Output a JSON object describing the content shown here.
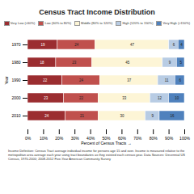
{
  "chart_data": {
    "type": "bar",
    "title": "Census Tract Income Distribution",
    "orientation": "horizontal",
    "stacked": true,
    "data_labels": true,
    "grid": false,
    "legend": "top",
    "xlabel": "Percent of Census Tracts",
    "ylabel": "Year",
    "categories": [
      "1970",
      "1980",
      "1990",
      "2000",
      "2010"
    ],
    "series": [
      {
        "name": "Very Low (<60%)",
        "color": "#9b2d30",
        "values": [
          19,
          18,
          22,
          23,
          24
        ]
      },
      {
        "name": "Low (60% to 80%)",
        "color": "#c0504d",
        "values": [
          24,
          23,
          24,
          22,
          21
        ]
      },
      {
        "name": "Middle (80% to 120%)",
        "color": "#fdf5d6",
        "values": [
          47,
          45,
          37,
          33,
          30
        ]
      },
      {
        "name": "High (120% to 150%)",
        "color": "#b8cce4",
        "values": [
          6,
          9,
          11,
          12,
          9
        ]
      },
      {
        "name": "Very High (>150%)",
        "color": "#4f81bd",
        "values": [
          4,
          5,
          6,
          10,
          16
        ]
      }
    ],
    "xlim": [
      0,
      100
    ],
    "xticks": [
      {
        "value": 0,
        "label": "0%"
      },
      {
        "value": 10,
        "label": "10%"
      },
      {
        "value": 20,
        "label": "20%"
      },
      {
        "value": 30,
        "label": "30%"
      },
      {
        "value": 40,
        "label": "40%"
      },
      {
        "value": 50,
        "label": "50%"
      },
      {
        "value": 60,
        "label": "60%"
      },
      {
        "value": 70,
        "label": "70%"
      },
      {
        "value": 80,
        "label": "80%"
      },
      {
        "value": 90,
        "label": "90%"
      },
      {
        "value": 100,
        "label": "100%"
      }
    ],
    "caption": "Income Definition: Census Tract average individual income for persons age 15 and over. Income is measured relative to the metropolitan area average each year using tract boundaries as they existed each census year. Data Sources: Decennial US Census, 1970-2000; 2008-2012 Five-Year American Community Survey"
  }
}
